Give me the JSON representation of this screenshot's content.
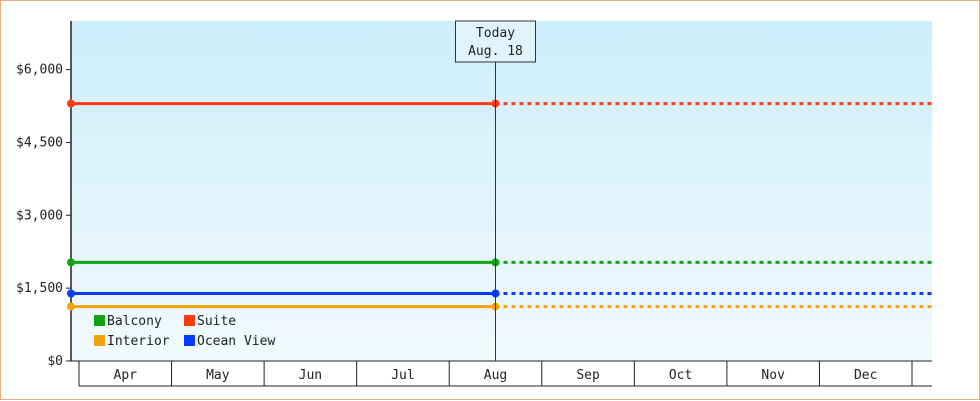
{
  "chart_data": {
    "type": "line",
    "categories": [
      "Apr",
      "May",
      "Jun",
      "Jul",
      "Aug",
      "Sep",
      "Oct",
      "Nov",
      "Dec"
    ],
    "ylim": [
      0,
      7000
    ],
    "yticks": [
      {
        "value": 0,
        "label": "$0"
      },
      {
        "value": 1500,
        "label": "$1,500"
      },
      {
        "value": 3000,
        "label": "$3,000"
      },
      {
        "value": 4500,
        "label": "$4,500"
      },
      {
        "value": 6000,
        "label": "$6,000"
      }
    ],
    "today": {
      "title": "Today",
      "date": "Aug. 18",
      "x_index": 4
    },
    "series": [
      {
        "name": "Suite",
        "color": "#ff3a12",
        "value": 5300
      },
      {
        "name": "Balcony",
        "color": "#12a112",
        "value": 2030
      },
      {
        "name": "Ocean View",
        "color": "#0a3cff",
        "value": 1390
      },
      {
        "name": "Interior",
        "color": "#f2a20e",
        "value": 1120
      }
    ],
    "legend": {
      "position": "bottom-left",
      "rows": [
        [
          "Balcony",
          "Suite"
        ],
        [
          "Interior",
          "Ocean View"
        ]
      ]
    },
    "grid": false
  }
}
